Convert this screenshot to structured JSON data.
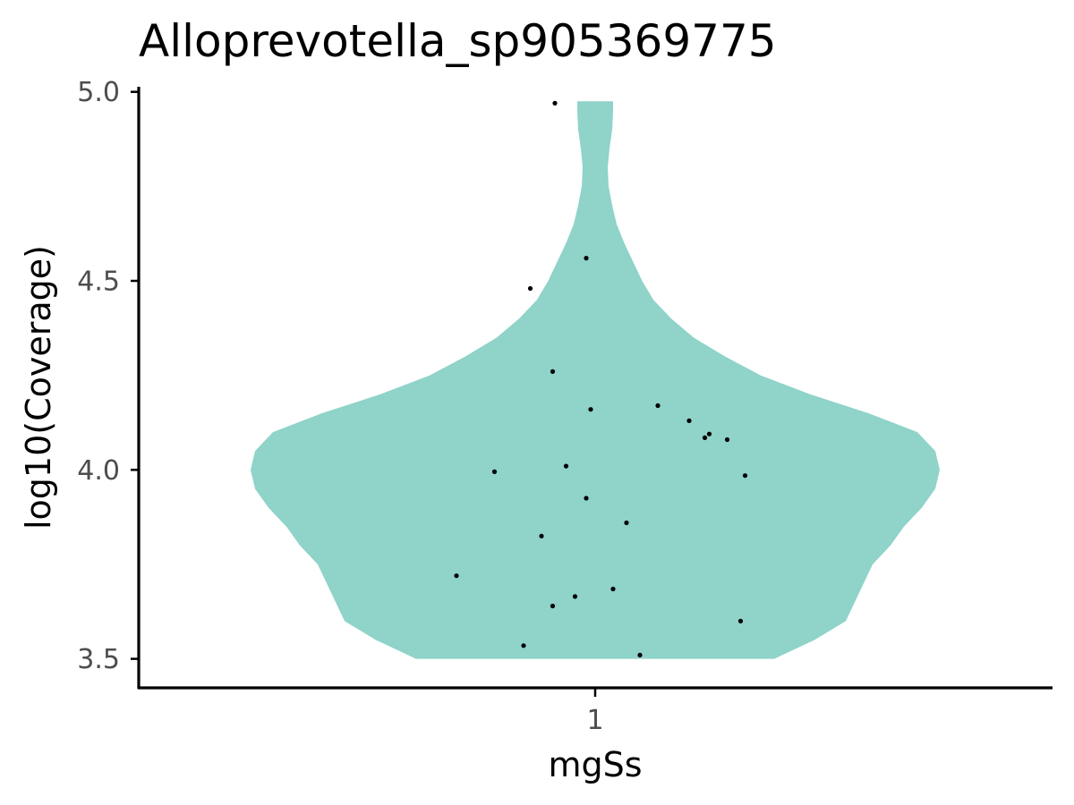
{
  "chart_data": {
    "type": "violin",
    "title": "Alloprevotella_sp905369775",
    "xlabel": "mgSs",
    "ylabel": "log10(Coverage)",
    "categories": [
      "1"
    ],
    "ylim": [
      3.44,
      5.03
    ],
    "yticks": [
      3.5,
      4.0,
      4.5,
      5.0
    ],
    "yticklabels": [
      "3.5",
      "4.0",
      "4.5",
      "5.0"
    ],
    "grid": false,
    "legend": "none",
    "fill_color": "#8FD3C9",
    "point_color": "#000000",
    "violin_profile": [
      {
        "y": 3.5,
        "half_width": 0.4
      },
      {
        "y": 3.55,
        "half_width": 0.49
      },
      {
        "y": 3.6,
        "half_width": 0.56
      },
      {
        "y": 3.65,
        "half_width": 0.58
      },
      {
        "y": 3.7,
        "half_width": 0.6
      },
      {
        "y": 3.75,
        "half_width": 0.62
      },
      {
        "y": 3.8,
        "half_width": 0.66
      },
      {
        "y": 3.85,
        "half_width": 0.69
      },
      {
        "y": 3.9,
        "half_width": 0.73
      },
      {
        "y": 3.95,
        "half_width": 0.76
      },
      {
        "y": 4.0,
        "half_width": 0.77
      },
      {
        "y": 4.05,
        "half_width": 0.76
      },
      {
        "y": 4.1,
        "half_width": 0.72
      },
      {
        "y": 4.15,
        "half_width": 0.61
      },
      {
        "y": 4.2,
        "half_width": 0.48
      },
      {
        "y": 4.25,
        "half_width": 0.37
      },
      {
        "y": 4.3,
        "half_width": 0.29
      },
      {
        "y": 4.35,
        "half_width": 0.22
      },
      {
        "y": 4.4,
        "half_width": 0.17
      },
      {
        "y": 4.45,
        "half_width": 0.13
      },
      {
        "y": 4.5,
        "half_width": 0.105
      },
      {
        "y": 4.55,
        "half_width": 0.085
      },
      {
        "y": 4.6,
        "half_width": 0.065
      },
      {
        "y": 4.65,
        "half_width": 0.048
      },
      {
        "y": 4.7,
        "half_width": 0.038
      },
      {
        "y": 4.75,
        "half_width": 0.03
      },
      {
        "y": 4.8,
        "half_width": 0.028
      },
      {
        "y": 4.85,
        "half_width": 0.032
      },
      {
        "y": 4.9,
        "half_width": 0.038
      },
      {
        "y": 4.95,
        "half_width": 0.04
      },
      {
        "y": 4.975,
        "half_width": 0.04
      }
    ],
    "points": [
      {
        "x": -0.09,
        "y": 4.97
      },
      {
        "x": -0.02,
        "y": 4.56
      },
      {
        "x": -0.145,
        "y": 4.48
      },
      {
        "x": -0.095,
        "y": 4.26
      },
      {
        "x": 0.14,
        "y": 4.17
      },
      {
        "x": -0.01,
        "y": 4.16
      },
      {
        "x": 0.21,
        "y": 4.13
      },
      {
        "x": 0.255,
        "y": 4.095
      },
      {
        "x": 0.245,
        "y": 4.085
      },
      {
        "x": 0.295,
        "y": 4.08
      },
      {
        "x": -0.065,
        "y": 4.01
      },
      {
        "x": -0.225,
        "y": 3.995
      },
      {
        "x": 0.335,
        "y": 3.985
      },
      {
        "x": -0.02,
        "y": 3.925
      },
      {
        "x": 0.07,
        "y": 3.86
      },
      {
        "x": -0.12,
        "y": 3.825
      },
      {
        "x": -0.31,
        "y": 3.72
      },
      {
        "x": 0.04,
        "y": 3.685
      },
      {
        "x": -0.045,
        "y": 3.665
      },
      {
        "x": -0.095,
        "y": 3.64
      },
      {
        "x": 0.325,
        "y": 3.6
      },
      {
        "x": -0.16,
        "y": 3.535
      },
      {
        "x": 0.1,
        "y": 3.51
      }
    ]
  }
}
